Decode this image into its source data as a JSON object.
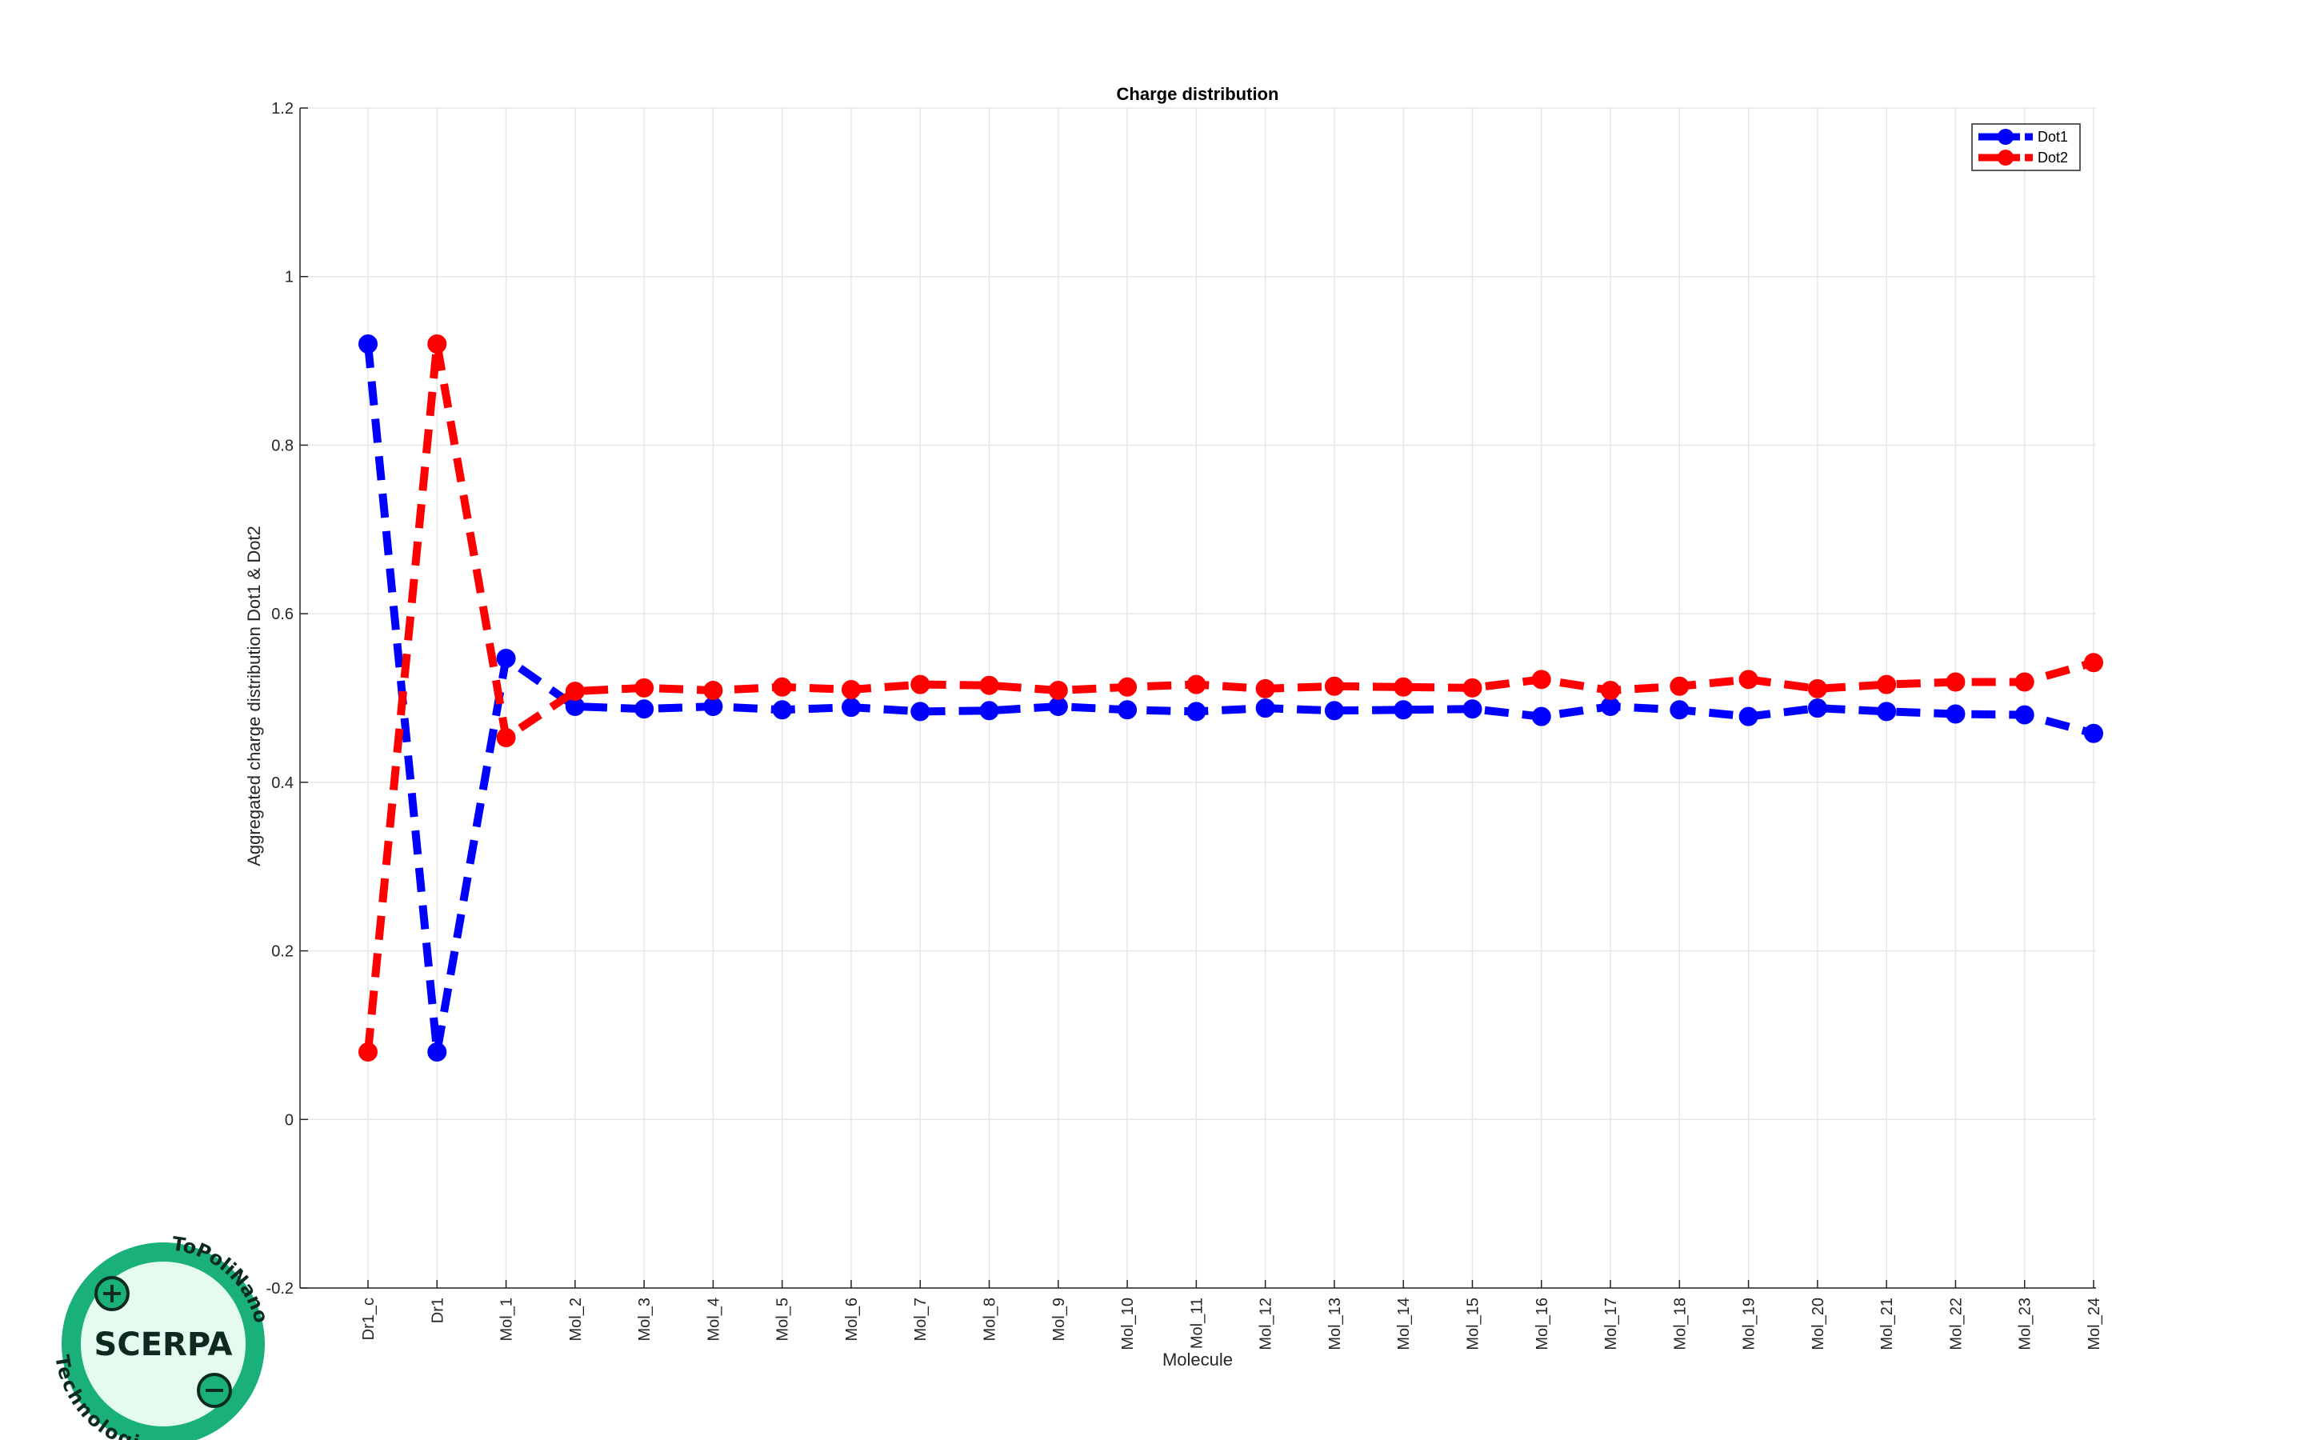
{
  "chart_data": {
    "type": "line",
    "title": "Charge distribution",
    "xlabel": "Molecule",
    "ylabel": "Aggregated charge distribution Dot1 & Dot2",
    "categories": [
      "Dr1_c",
      "Dr1",
      "Mol_1",
      "Mol_2",
      "Mol_3",
      "Mol_4",
      "Mol_5",
      "Mol_6",
      "Mol_7",
      "Mol_8",
      "Mol_9",
      "Mol_10",
      "Mol_11",
      "Mol_12",
      "Mol_13",
      "Mol_14",
      "Mol_15",
      "Mol_16",
      "Mol_17",
      "Mol_18",
      "Mol_19",
      "Mol_20",
      "Mol_21",
      "Mol_22",
      "Mol_23",
      "Mol_24"
    ],
    "ylim": [
      -0.2,
      1.2
    ],
    "yticks": [
      -0.2,
      0,
      0.2,
      0.4,
      0.6,
      0.8,
      1,
      1.2
    ],
    "ytick_labels": [
      "-0.2",
      "0",
      "0.2",
      "0.4",
      "0.6",
      "0.8",
      "1",
      "1.2"
    ],
    "grid": true,
    "legend_position": "top-right",
    "series": [
      {
        "name": "Dot1",
        "color": "#0000ff",
        "values": [
          0.92,
          0.08,
          0.547,
          0.49,
          0.487,
          0.49,
          0.486,
          0.489,
          0.484,
          0.485,
          0.49,
          0.486,
          0.484,
          0.488,
          0.485,
          0.486,
          0.487,
          0.478,
          0.49,
          0.486,
          0.478,
          0.488,
          0.484,
          0.481,
          0.48,
          0.458
        ]
      },
      {
        "name": "Dot2",
        "color": "#ff0000",
        "values": [
          0.08,
          0.92,
          0.453,
          0.508,
          0.512,
          0.509,
          0.513,
          0.51,
          0.516,
          0.515,
          0.509,
          0.513,
          0.516,
          0.511,
          0.514,
          0.513,
          0.512,
          0.522,
          0.509,
          0.514,
          0.522,
          0.511,
          0.516,
          0.519,
          0.519,
          0.542
        ]
      }
    ]
  },
  "logo": {
    "name": "SCERPA",
    "arc_top": "ToPoliNano",
    "arc_bottom": "Technologies"
  }
}
